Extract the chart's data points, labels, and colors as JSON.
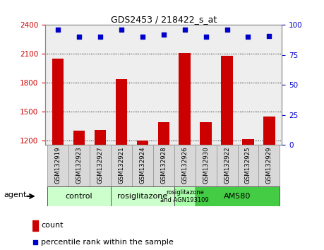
{
  "title": "GDS2453 / 218422_s_at",
  "samples": [
    "GSM132919",
    "GSM132923",
    "GSM132927",
    "GSM132921",
    "GSM132924",
    "GSM132928",
    "GSM132926",
    "GSM132930",
    "GSM132922",
    "GSM132925",
    "GSM132929"
  ],
  "counts": [
    2050,
    1300,
    1310,
    1840,
    1195,
    1390,
    2110,
    1390,
    2080,
    1210,
    1450
  ],
  "percentiles": [
    96,
    90,
    90,
    96,
    90,
    92,
    96,
    90,
    96,
    90,
    91
  ],
  "bar_color": "#cc0000",
  "dot_color": "#0000cc",
  "ylim_left": [
    1150,
    2400
  ],
  "ylim_right": [
    0,
    100
  ],
  "yticks_left": [
    1200,
    1500,
    1800,
    2100,
    2400
  ],
  "yticks_right": [
    0,
    25,
    50,
    75,
    100
  ],
  "groups": [
    {
      "label": "control",
      "start": 0,
      "end": 2,
      "color": "#ccffcc",
      "text_size": 8
    },
    {
      "label": "rosiglitazone",
      "start": 3,
      "end": 5,
      "color": "#ccffcc",
      "text_size": 8
    },
    {
      "label": "rosiglitazone\nand AGN193109",
      "start": 6,
      "end": 6,
      "color": "#aaffaa",
      "text_size": 6
    },
    {
      "label": "AM580",
      "start": 7,
      "end": 10,
      "color": "#44cc44",
      "text_size": 8
    }
  ],
  "agent_label": "agent",
  "legend_bar_label": "count",
  "legend_dot_label": "percentile rank within the sample",
  "bg_color": "#ffffff",
  "plot_bg_color": "#eeeeee",
  "ticklabel_color_left": "#cc0000",
  "ticklabel_color_right": "#0000cc"
}
